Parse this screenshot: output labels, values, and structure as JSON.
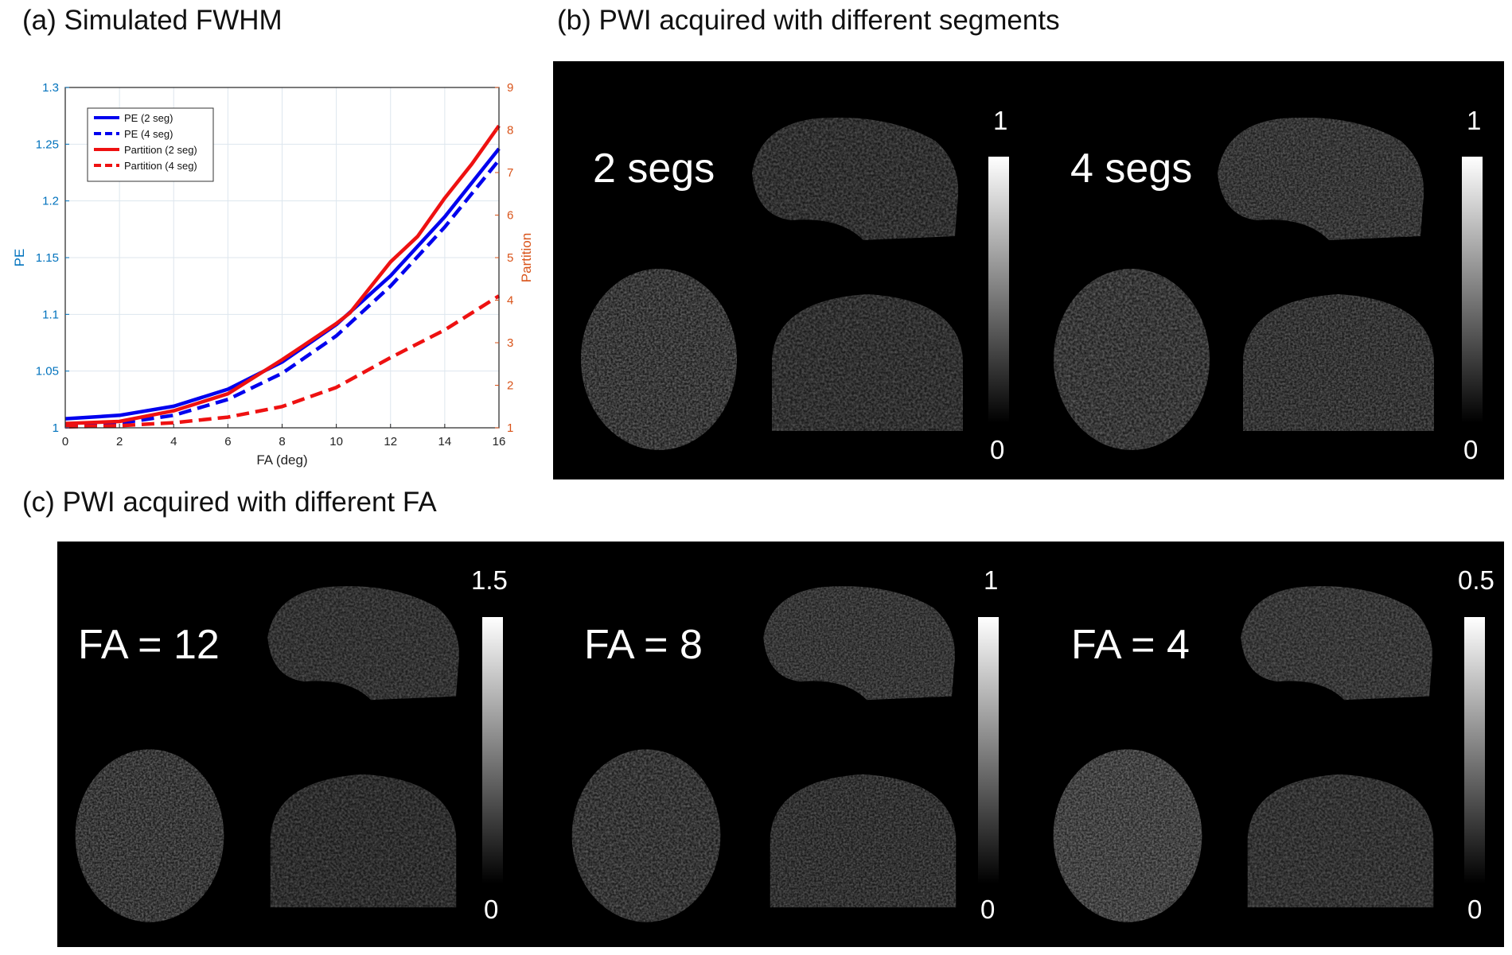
{
  "panels": {
    "a_title": "(a) Simulated FWHM",
    "b_title": "(b) PWI acquired with different segments",
    "c_title": "(c) PWI acquired with different FA"
  },
  "panel_b": {
    "images": [
      {
        "label": "2 segs",
        "cbar_max": "1",
        "cbar_min": "0"
      },
      {
        "label": "4 segs",
        "cbar_max": "1",
        "cbar_min": "0"
      }
    ]
  },
  "panel_c": {
    "images": [
      {
        "label": "FA = 12",
        "cbar_max": "1.5",
        "cbar_min": "0"
      },
      {
        "label": "FA = 8",
        "cbar_max": "1",
        "cbar_min": "0"
      },
      {
        "label": "FA = 4",
        "cbar_max": "0.5",
        "cbar_min": "0"
      }
    ]
  },
  "chart_data": {
    "type": "line",
    "title": "",
    "xlabel": "FA (deg)",
    "ylabel": "PE",
    "y2label": "Partition",
    "xlim": [
      0,
      16
    ],
    "ylim": [
      1,
      1.3
    ],
    "y2lim": [
      1,
      9
    ],
    "xticks": [
      0,
      2,
      4,
      6,
      8,
      10,
      12,
      14,
      16
    ],
    "yticks": [
      1,
      1.05,
      1.1,
      1.15,
      1.2,
      1.25,
      1.3
    ],
    "y2ticks": [
      1,
      2,
      3,
      4,
      5,
      6,
      7,
      8,
      9
    ],
    "grid": true,
    "legend_position": "top-left",
    "colors": {
      "pe": "#0000ee",
      "partition": "#ee1111",
      "left_axis": "#0072bd",
      "right_axis": "#d95319"
    },
    "series": [
      {
        "name": "PE (2 seg)",
        "axis": "left",
        "style": "solid",
        "color": "#0000ee",
        "x": [
          0,
          2,
          4,
          6,
          8,
          10,
          12,
          14,
          16
        ],
        "y": [
          1.008,
          1.011,
          1.019,
          1.034,
          1.058,
          1.091,
          1.134,
          1.186,
          1.246
        ]
      },
      {
        "name": "PE (4 seg)",
        "axis": "left",
        "style": "dashed",
        "color": "#0000ee",
        "x": [
          0,
          2,
          4,
          6,
          8,
          10,
          12,
          14,
          16
        ],
        "y": [
          1.002,
          1.004,
          1.011,
          1.025,
          1.048,
          1.081,
          1.125,
          1.177,
          1.236
        ]
      },
      {
        "name": "Partition (2 seg)",
        "axis": "right",
        "style": "solid",
        "color": "#ee1111",
        "x": [
          0,
          2,
          4,
          6,
          8,
          10,
          10.5,
          12,
          13,
          14,
          15,
          16
        ],
        "y": [
          1.1,
          1.15,
          1.4,
          1.8,
          2.6,
          3.45,
          3.7,
          4.9,
          5.5,
          6.4,
          7.2,
          8.1
        ]
      },
      {
        "name": "Partition (4 seg)",
        "axis": "right",
        "style": "dashed",
        "color": "#ee1111",
        "x": [
          0,
          2,
          4,
          6,
          8,
          10,
          12,
          14,
          16
        ],
        "y": [
          1.02,
          1.05,
          1.12,
          1.25,
          1.5,
          1.95,
          2.65,
          3.3,
          4.1
        ]
      }
    ]
  }
}
